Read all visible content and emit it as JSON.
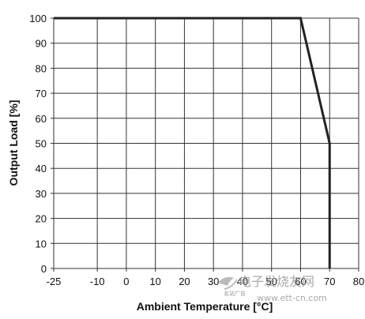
{
  "chart_data": {
    "type": "line",
    "title": "",
    "xlabel": "Ambient Temperature [°C]",
    "ylabel": "Output Load [%]",
    "xlim": [
      -25,
      80
    ],
    "ylim": [
      0,
      100
    ],
    "x_ticks": [
      -25,
      -10,
      0,
      10,
      20,
      30,
      40,
      50,
      60,
      70,
      80
    ],
    "y_ticks": [
      0,
      10,
      20,
      30,
      40,
      50,
      60,
      70,
      80,
      90,
      100
    ],
    "x_tick_labels": [
      "-25",
      "-10",
      "0",
      "10",
      "20",
      "30",
      "40",
      "50",
      "60",
      "70",
      "80"
    ],
    "y_tick_labels": [
      "0",
      "10",
      "20",
      "30",
      "40",
      "50",
      "60",
      "70",
      "80",
      "90",
      "100"
    ],
    "grid": true,
    "series": [
      {
        "x": [
          -25,
          60,
          70,
          70
        ],
        "y": [
          100,
          100,
          50,
          0
        ]
      }
    ]
  },
  "watermark": {
    "text": "电子发烧友网",
    "url": "www.ett-cn.com",
    "small": "名站广告"
  },
  "colors": {
    "line": "#222222",
    "grid": "#333333",
    "watermark": "#9a9a9a"
  }
}
